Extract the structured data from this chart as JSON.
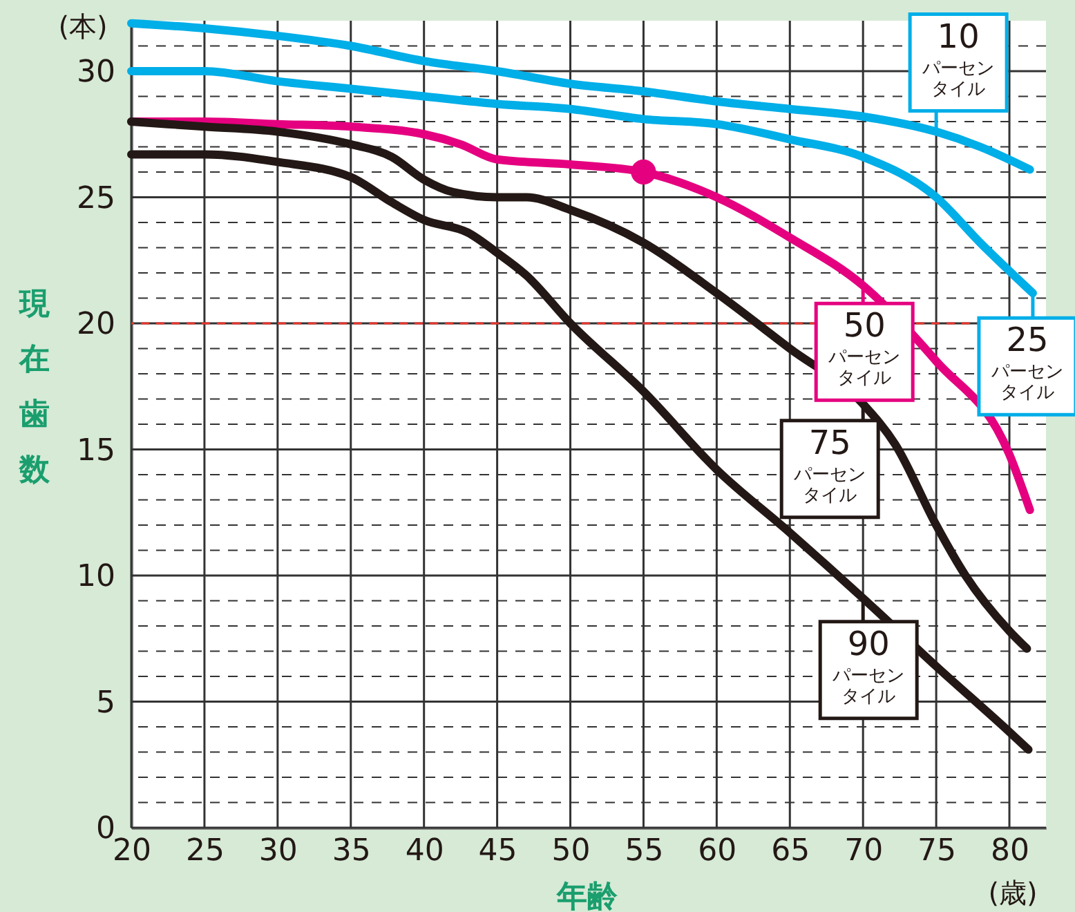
{
  "chart_data": {
    "type": "line",
    "ylabel": "現在歯数",
    "xlabel": "年齢",
    "annotations": [
      "(本)",
      "(歳)"
    ],
    "xlim": [
      20,
      82.5
    ],
    "xticks": [
      20,
      25,
      30,
      35,
      40,
      45,
      50,
      55,
      60,
      65,
      70,
      75,
      80
    ],
    "ylim": [
      0,
      32
    ],
    "yticks": [
      0,
      {
        "value": 1,
        "label": null
      },
      {
        "value": 2,
        "label": null
      },
      {
        "value": 3,
        "label": null
      },
      {
        "value": 4,
        "label": null
      },
      5,
      {
        "value": 6,
        "label": null
      },
      {
        "value": 7,
        "label": null
      },
      {
        "value": 8,
        "label": null
      },
      {
        "value": 9,
        "label": null
      },
      10,
      {
        "value": 11,
        "label": null
      },
      {
        "value": 12,
        "label": null
      },
      {
        "value": 13,
        "label": null
      },
      {
        "value": 14,
        "label": null
      },
      15,
      {
        "value": 16,
        "label": null
      },
      {
        "value": 17,
        "label": null
      },
      {
        "value": 18,
        "label": null
      },
      {
        "value": 19,
        "label": null
      },
      20,
      {
        "value": 21,
        "label": null
      },
      {
        "value": 22,
        "label": null
      },
      {
        "value": 23,
        "label": null
      },
      {
        "value": 24,
        "label": null
      },
      25,
      {
        "value": 26,
        "label": null
      },
      {
        "value": 27,
        "label": null
      },
      {
        "value": 28,
        "label": null
      },
      {
        "value": 29,
        "label": null
      },
      30,
      {
        "value": 31,
        "label": null
      }
    ],
    "grid": true,
    "legend": "right",
    "line_style": "solid",
    "ref_lines": [
      {
        "axis": "y",
        "value": 20,
        "color": "#e8352e",
        "line_style": "dashed"
      }
    ],
    "series": [
      {
        "name": "10パーセンタイル",
        "color": "#00aee8",
        "x": [
          20,
          25,
          30,
          35,
          40,
          45,
          50,
          55,
          60,
          65,
          70,
          75,
          78,
          81.4
        ],
        "values": [
          31.9,
          31.7,
          31.4,
          31.0,
          30.4,
          30.0,
          29.5,
          29.2,
          28.8,
          28.5,
          28.2,
          27.6,
          27.0,
          26.1
        ]
      },
      {
        "name": "25パーセンタイル",
        "color": "#00aee8",
        "x": [
          20,
          25,
          30,
          35,
          40,
          45,
          50,
          55,
          60,
          65,
          70,
          75,
          78,
          81.6
        ],
        "values": [
          30.0,
          30.0,
          29.6,
          29.3,
          29.0,
          28.7,
          28.5,
          28.1,
          27.9,
          27.3,
          26.6,
          25.0,
          23.2,
          21.2
        ]
      },
      {
        "name": "50パーセンタイル",
        "color": "#e5007f",
        "x": [
          20,
          25,
          30,
          35,
          40,
          42.5,
          45,
          50,
          55,
          60,
          65,
          70,
          75,
          80,
          81.4
        ],
        "values": [
          28.0,
          28.0,
          27.9,
          27.8,
          27.5,
          27.1,
          26.5,
          26.3,
          26.0,
          25.0,
          23.4,
          21.5,
          18.5,
          14.8,
          12.6
        ]
      },
      {
        "name": "75パーセンタイル",
        "color": "#231815",
        "x": [
          20,
          25,
          30,
          35,
          37.8,
          40,
          42,
          45,
          47,
          50,
          55,
          60,
          65,
          70,
          72.2,
          75,
          77,
          80,
          81.2
        ],
        "values": [
          28.0,
          27.8,
          27.6,
          27.1,
          26.6,
          25.7,
          25.2,
          25.0,
          25.0,
          24.5,
          23.2,
          21.2,
          19.0,
          16.8,
          15.2,
          12.0,
          10.0,
          7.8,
          7.1
        ]
      },
      {
        "name": "90パーセンタイル",
        "color": "#231815",
        "x": [
          20,
          25,
          30,
          35,
          37.8,
          40,
          43,
          45,
          47,
          50,
          55,
          60,
          65,
          70,
          75,
          80,
          81.3
        ],
        "values": [
          26.7,
          26.7,
          26.4,
          25.8,
          24.8,
          24.1,
          23.6,
          22.8,
          21.9,
          20.0,
          17.3,
          14.2,
          11.7,
          9.1,
          6.4,
          3.8,
          3.1
        ]
      },
      {
        "type": "scatter",
        "marker": "circle",
        "color": "#e5007f",
        "x": [
          55
        ],
        "values": [
          26.0
        ]
      }
    ]
  }
}
